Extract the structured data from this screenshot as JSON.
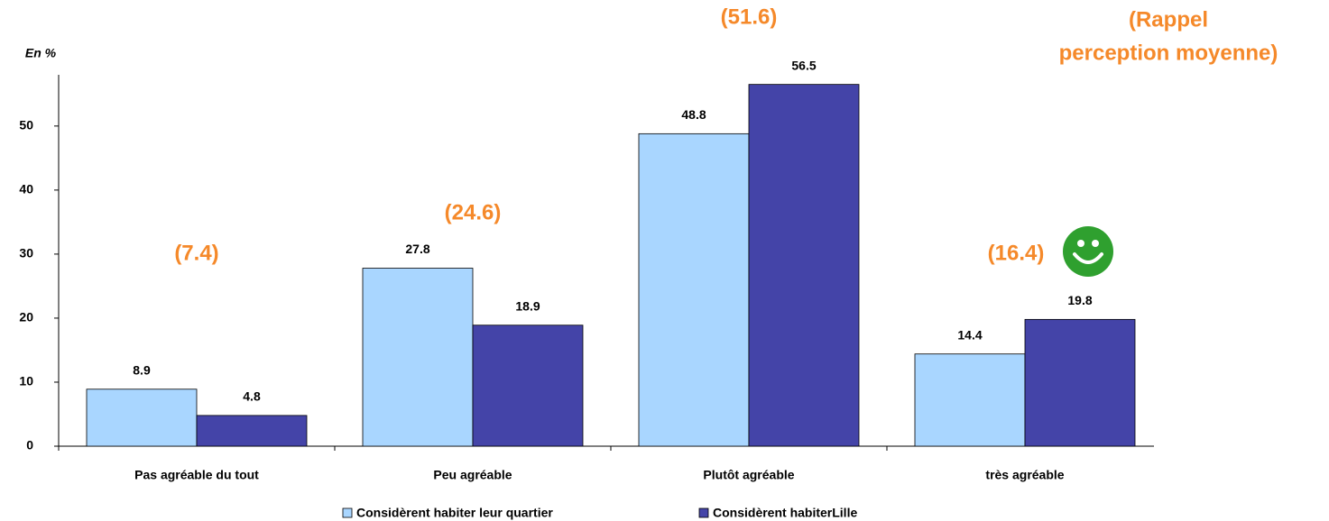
{
  "chart_data": {
    "type": "bar",
    "y_label": "En %",
    "categories": [
      "Pas agréable du tout",
      "Peu agréable",
      "Plutôt agréable",
      "très agréable"
    ],
    "series": [
      {
        "name": "Considèrent habiter leur quartier",
        "color": "#a9d6ff",
        "values": [
          8.9,
          27.8,
          48.8,
          14.4
        ]
      },
      {
        "name": "Considèrent habiterLille",
        "color": "#4444a8",
        "values": [
          4.8,
          18.9,
          56.5,
          19.8
        ]
      }
    ],
    "reference": {
      "title": [
        "(Rappel",
        "perception moyenne)"
      ],
      "color": "#f5892a",
      "values": [
        7.4,
        24.6,
        51.6,
        16.4
      ],
      "value_labels": [
        "(7.4)",
        "(24.6)",
        "(51.6)",
        "(16.4)"
      ]
    },
    "ylim": [
      0,
      58
    ],
    "yticks": [
      0,
      10,
      20,
      30,
      40,
      50
    ]
  }
}
